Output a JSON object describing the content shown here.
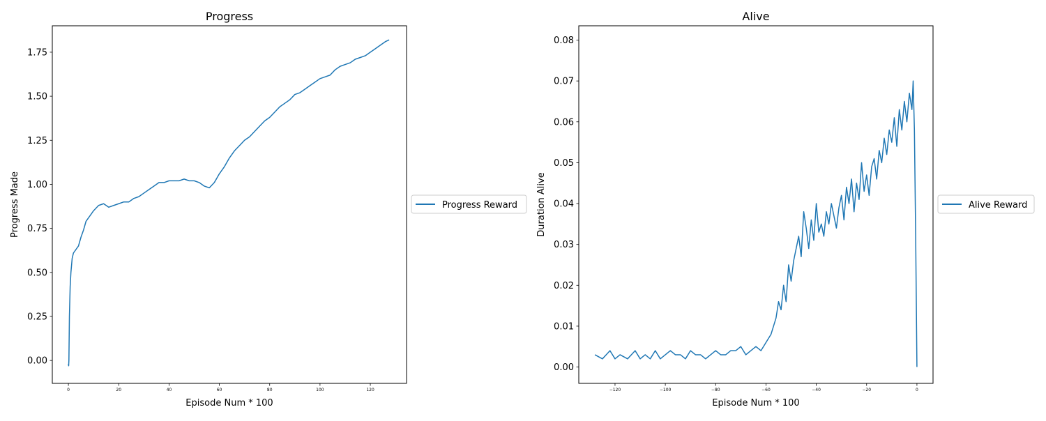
{
  "chart_data": [
    {
      "type": "line",
      "title": "Progress",
      "xlabel": "Episode Num * 100",
      "ylabel": "Progress Made",
      "xlim": [
        -6.4,
        134.4
      ],
      "ylim": [
        -0.13,
        1.9
      ],
      "xticks": [
        0,
        20,
        40,
        60,
        80,
        100,
        120
      ],
      "yticks": [
        0.0,
        0.25,
        0.5,
        0.75,
        1.0,
        1.25,
        1.5,
        1.75
      ],
      "ytick_labels": [
        "0.00",
        "0.25",
        "0.50",
        "0.75",
        "1.00",
        "1.25",
        "1.50",
        "1.75"
      ],
      "grid": false,
      "legend": "outside-right",
      "series": [
        {
          "name": "Progress Reward",
          "color": "#1f77b4",
          "x": [
            0,
            0.1,
            0.2,
            0.4,
            0.7,
            1,
            1.5,
            2,
            3,
            4,
            5,
            6,
            7,
            8,
            9,
            10,
            12,
            14,
            16,
            18,
            20,
            22,
            24,
            26,
            28,
            30,
            32,
            34,
            36,
            38,
            40,
            42,
            44,
            46,
            48,
            50,
            52,
            54,
            56,
            58,
            60,
            62,
            64,
            66,
            68,
            70,
            72,
            74,
            76,
            78,
            80,
            82,
            84,
            86,
            88,
            90,
            92,
            94,
            96,
            98,
            100,
            102,
            104,
            106,
            108,
            110,
            112,
            114,
            116,
            118,
            120,
            122,
            124,
            126,
            127.5
          ],
          "y": [
            -0.02,
            -0.03,
            0.0,
            0.25,
            0.42,
            0.5,
            0.58,
            0.61,
            0.63,
            0.65,
            0.7,
            0.74,
            0.79,
            0.81,
            0.83,
            0.85,
            0.88,
            0.89,
            0.87,
            0.88,
            0.89,
            0.9,
            0.9,
            0.92,
            0.93,
            0.95,
            0.97,
            0.99,
            1.01,
            1.01,
            1.02,
            1.02,
            1.02,
            1.03,
            1.02,
            1.02,
            1.01,
            0.99,
            0.98,
            1.01,
            1.06,
            1.1,
            1.15,
            1.19,
            1.22,
            1.25,
            1.27,
            1.3,
            1.33,
            1.36,
            1.38,
            1.41,
            1.44,
            1.46,
            1.48,
            1.51,
            1.52,
            1.54,
            1.56,
            1.58,
            1.6,
            1.61,
            1.62,
            1.65,
            1.67,
            1.68,
            1.69,
            1.71,
            1.72,
            1.73,
            1.75,
            1.77,
            1.79,
            1.81,
            1.82
          ]
        }
      ]
    },
    {
      "type": "line",
      "title": "Alive",
      "xlabel": "Episode Num * 100",
      "ylabel": "Duration Alive",
      "xlim": [
        -134.4,
        6.4
      ],
      "ylim": [
        -0.004,
        0.0835
      ],
      "xticks": [
        -120,
        -100,
        -80,
        -60,
        -40,
        -20,
        0
      ],
      "xtick_labels": [
        "−120",
        "−100",
        "−80",
        "−60",
        "−40",
        "−20",
        "0"
      ],
      "yticks": [
        0.0,
        0.01,
        0.02,
        0.03,
        0.04,
        0.05,
        0.06,
        0.07,
        0.08
      ],
      "ytick_labels": [
        "0.00",
        "0.01",
        "0.02",
        "0.03",
        "0.04",
        "0.05",
        "0.06",
        "0.07",
        "0.08"
      ],
      "grid": false,
      "legend": "outside-right",
      "series": [
        {
          "name": "Alive Reward",
          "color": "#1f77b4",
          "x": [
            -128,
            -125,
            -122,
            -120,
            -118,
            -115,
            -112,
            -110,
            -108,
            -106,
            -104,
            -102,
            -100,
            -98,
            -96,
            -94,
            -92,
            -90,
            -88,
            -86,
            -84,
            -82,
            -80,
            -78,
            -76,
            -74,
            -72,
            -70,
            -68,
            -66,
            -64,
            -62,
            -60,
            -58,
            -57,
            -56,
            -55,
            -54,
            -53,
            -52,
            -51,
            -50,
            -49,
            -48,
            -47,
            -46,
            -45,
            -44,
            -43,
            -42,
            -41,
            -40,
            -39,
            -38,
            -37,
            -36,
            -35,
            -34,
            -33,
            -32,
            -31,
            -30,
            -29,
            -28,
            -27,
            -26,
            -25,
            -24,
            -23,
            -22,
            -21,
            -20,
            -19,
            -18,
            -17,
            -16,
            -15,
            -14,
            -13,
            -12,
            -11,
            -10,
            -9,
            -8,
            -7,
            -6,
            -5,
            -4,
            -3,
            -2,
            -1.5,
            -1,
            -0.5,
            0
          ],
          "y": [
            0.003,
            0.002,
            0.004,
            0.002,
            0.003,
            0.002,
            0.004,
            0.002,
            0.003,
            0.002,
            0.004,
            0.002,
            0.003,
            0.004,
            0.003,
            0.003,
            0.002,
            0.004,
            0.003,
            0.003,
            0.002,
            0.003,
            0.004,
            0.003,
            0.003,
            0.004,
            0.004,
            0.005,
            0.003,
            0.004,
            0.005,
            0.004,
            0.006,
            0.008,
            0.01,
            0.012,
            0.016,
            0.014,
            0.02,
            0.016,
            0.025,
            0.021,
            0.026,
            0.029,
            0.032,
            0.027,
            0.038,
            0.034,
            0.029,
            0.036,
            0.031,
            0.04,
            0.033,
            0.035,
            0.032,
            0.038,
            0.035,
            0.04,
            0.037,
            0.034,
            0.039,
            0.042,
            0.036,
            0.044,
            0.04,
            0.046,
            0.038,
            0.045,
            0.041,
            0.05,
            0.043,
            0.047,
            0.042,
            0.049,
            0.051,
            0.046,
            0.053,
            0.05,
            0.056,
            0.052,
            0.058,
            0.055,
            0.061,
            0.054,
            0.063,
            0.058,
            0.065,
            0.06,
            0.067,
            0.063,
            0.07,
            0.058,
            0.032,
            0.0
          ]
        }
      ]
    }
  ]
}
